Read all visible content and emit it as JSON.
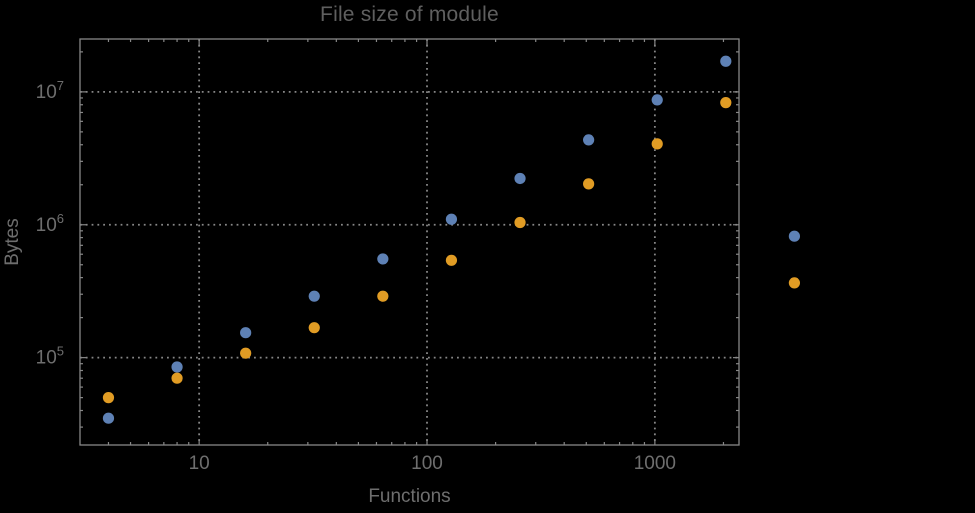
{
  "chart_data": {
    "type": "scatter",
    "title": "File size of module",
    "xlabel": "Functions",
    "ylabel": "Bytes",
    "xscale": "log",
    "yscale": "log",
    "xlim": [
      3,
      2340
    ],
    "ylim": [
      22000,
      25000000
    ],
    "grid": "dotted-at-decades",
    "legend": "none",
    "x_major_ticks": [
      10,
      100,
      1000
    ],
    "x_tick_labels": [
      "10",
      "100",
      "1000"
    ],
    "y_major_ticks": [
      100000,
      1000000,
      10000000
    ],
    "y_tick_labels": [
      {
        "base": "10",
        "exp": "5"
      },
      {
        "base": "10",
        "exp": "6"
      },
      {
        "base": "10",
        "exp": "7"
      }
    ],
    "x": [
      4,
      8,
      16,
      32,
      64,
      128,
      256,
      512,
      1024,
      2048,
      4096
    ],
    "series": [
      {
        "name": "series-1-blue",
        "color": "#5e81b5",
        "values": [
          35000,
          85000,
          154000,
          290000,
          553000,
          1100000,
          2230000,
          4350000,
          8700000,
          17000000,
          820000
        ]
      },
      {
        "name": "series-2-orange",
        "color": "#e19c24",
        "values": [
          50000,
          70000,
          108000,
          168000,
          290000,
          540000,
          1040000,
          2030000,
          4060000,
          8300000,
          365000
        ]
      }
    ],
    "colors": {
      "background": "#000000",
      "frame": "#878787",
      "grid": "#878787",
      "title_text": "#5f5f5f",
      "axis_label_text": "#6e6e6e",
      "tick_label_text": "#6e6e6e"
    }
  }
}
